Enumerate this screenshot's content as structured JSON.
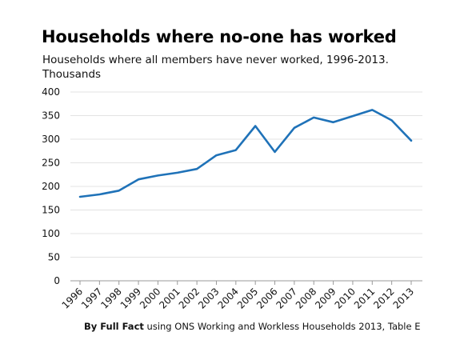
{
  "header": {
    "title": "Households where no-one has worked",
    "subtitle_line1": "Households where all members have never worked, 1996-2013.",
    "subtitle_line2": "Thousands"
  },
  "footer": {
    "source_bold": "By Full Fact",
    "source_rest": " using ONS Working and Workless Households 2013, Table E"
  },
  "chart_data": {
    "type": "line",
    "x": [
      "1996",
      "1997",
      "1998",
      "1999",
      "2000",
      "2001",
      "2002",
      "2003",
      "2004",
      "2005",
      "2006",
      "2007",
      "2008",
      "2009",
      "2010",
      "2011",
      "2012",
      "2013"
    ],
    "series": [
      {
        "values": [
          178,
          183,
          191,
          215,
          223,
          229,
          237,
          266,
          277,
          328,
          273,
          324,
          346,
          336,
          349,
          362,
          340,
          297
        ],
        "color": "#1f72b8"
      }
    ],
    "ylim": [
      0,
      400
    ],
    "yticks": [
      0,
      50,
      100,
      150,
      200,
      250,
      300,
      350,
      400
    ],
    "grid": true
  }
}
